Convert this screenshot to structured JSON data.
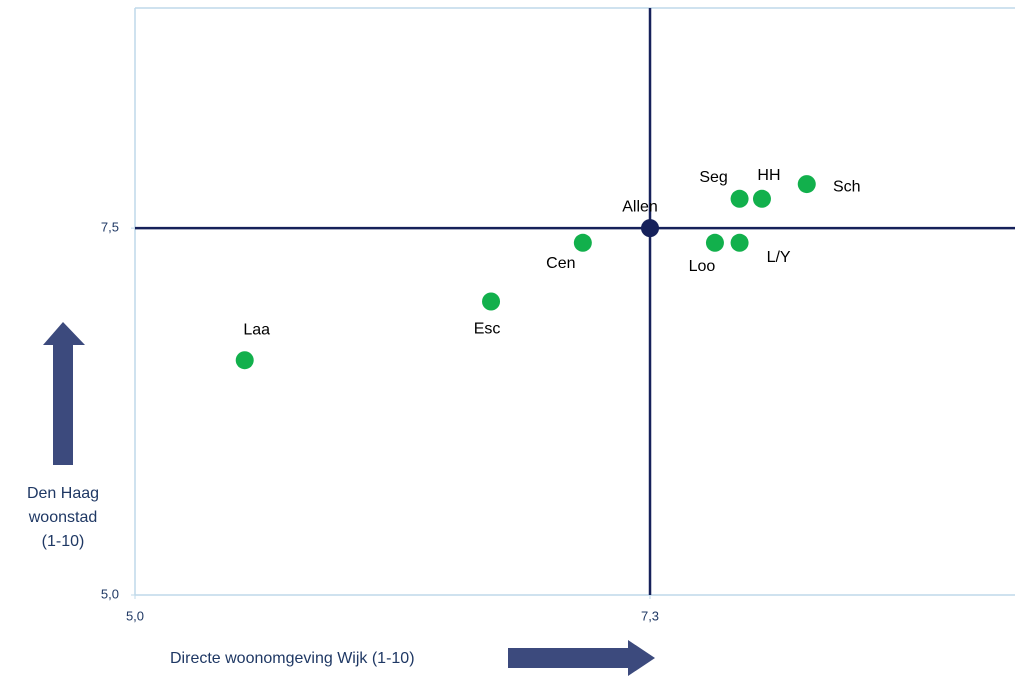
{
  "chart_data": {
    "type": "scatter",
    "x_label": "Directe woonomgeving Wijk (1-10)",
    "y_label": [
      "Den Haag",
      "woonstad",
      "(1-10)"
    ],
    "xlim": [
      5.0,
      8.93
    ],
    "ylim": [
      5.0,
      9.0
    ],
    "xticks": [
      {
        "value": 5.0,
        "label": "5,0"
      },
      {
        "value": 7.3,
        "label": "7,3"
      }
    ],
    "yticks": [
      {
        "value": 5.0,
        "label": "5,0"
      },
      {
        "value": 7.5,
        "label": "7,5"
      }
    ],
    "reference_point": 3,
    "points": [
      {
        "label": "Laa",
        "x": 5.49,
        "y": 6.6,
        "color": "#12b04c"
      },
      {
        "label": "Esc",
        "x": 6.59,
        "y": 7.0,
        "color": "#12b04c"
      },
      {
        "label": "Cen",
        "x": 7.0,
        "y": 7.4,
        "color": "#12b04c"
      },
      {
        "label": "Allen",
        "x": 7.3,
        "y": 7.5,
        "color": "#16215a"
      },
      {
        "label": "Loo",
        "x": 7.59,
        "y": 7.4,
        "color": "#12b04c"
      },
      {
        "label": "L/Y",
        "x": 7.7,
        "y": 7.4,
        "color": "#12b04c"
      },
      {
        "label": "Seg",
        "x": 7.7,
        "y": 7.7,
        "color": "#12b04c"
      },
      {
        "label": "HH",
        "x": 7.8,
        "y": 7.7,
        "color": "#12b04c"
      },
      {
        "label": "Sch",
        "x": 8.0,
        "y": 7.8,
        "color": "#12b04c"
      }
    ]
  }
}
